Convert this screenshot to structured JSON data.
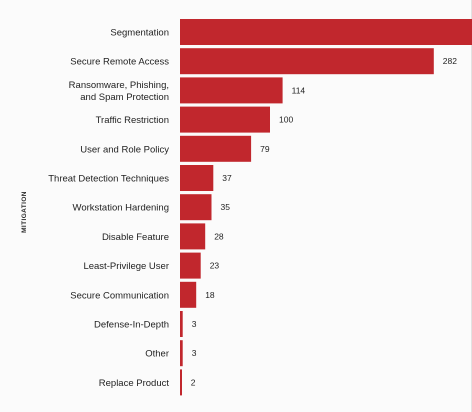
{
  "chart_data": {
    "type": "bar",
    "orientation": "horizontal",
    "ylabel": "MITIGATION",
    "categories": [
      "Segmentation",
      "Secure Remote Access",
      "Ransomware, Phishing, and Spam Protection",
      "Traffic Restriction",
      "User and Role Policy",
      "Threat Detection Techniques",
      "Workstation Hardening",
      "Disable Feature",
      "Least-Privilege User",
      "Secure Communication",
      "Defense-In-Depth",
      "Other",
      "Replace Product"
    ],
    "category_lines": [
      [
        "Segmentation"
      ],
      [
        "Secure Remote Access"
      ],
      [
        "Ransomware, Phishing,",
        "and Spam Protection"
      ],
      [
        "Traffic Restriction"
      ],
      [
        "User and Role Policy"
      ],
      [
        "Threat Detection Techniques"
      ],
      [
        "Workstation Hardening"
      ],
      [
        "Disable Feature"
      ],
      [
        "Least-Privilege User"
      ],
      [
        "Secure Communication"
      ],
      [
        "Defense-In-Depth"
      ],
      [
        "Other"
      ],
      [
        "Replace Product"
      ]
    ],
    "values": [
      null,
      282,
      114,
      100,
      79,
      37,
      35,
      28,
      23,
      18,
      3,
      3,
      2
    ],
    "value_labels": [
      "",
      "282",
      "114",
      "100",
      "79",
      "37",
      "35",
      "28",
      "23",
      "18",
      "3",
      "3",
      "2"
    ],
    "estimated_values": [
      330,
      282,
      114,
      100,
      79,
      37,
      35,
      28,
      23,
      18,
      3,
      3,
      2
    ],
    "bar_color": "#c1272d",
    "grid": false,
    "legend": "none"
  }
}
